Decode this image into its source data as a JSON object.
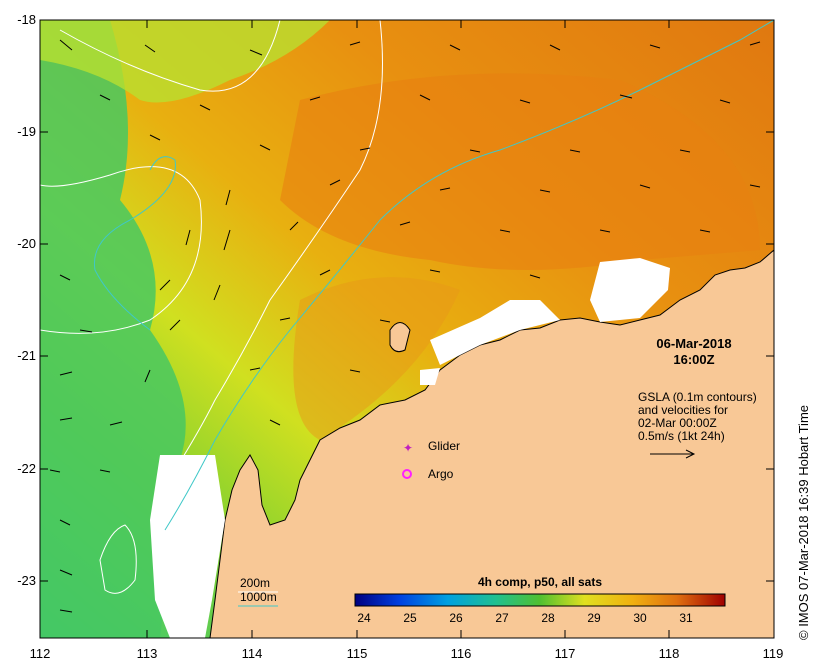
{
  "map": {
    "y_axis_labels": [
      "-18",
      "-19",
      "-20",
      "-21",
      "-22",
      "-23"
    ],
    "x_axis_labels": [
      "112",
      "113",
      "114",
      "115",
      "116",
      "117",
      "118",
      "119"
    ],
    "date": "06-Mar-2018",
    "time": "16:00Z",
    "gsla_lines": [
      "GSLA (0.1m contours)",
      "and velocities for",
      "02-Mar 00:00Z",
      "0.5m/s (1kt 24h)"
    ],
    "glider_label": "Glider",
    "argo_label": "Argo",
    "contour_200m": "200m",
    "contour_1000m": "1000m",
    "colorbar_title": "4h comp, p50, all sats",
    "colorbar_ticks": [
      "24",
      "25",
      "26",
      "27",
      "28",
      "29",
      "30",
      "31"
    ],
    "copyright": "© IMOS 07-Mar-2018 16:39 Hobart Time"
  },
  "colors": {
    "land": "#f8c896",
    "bathy_200": "#ffffff",
    "bathy_1000": "#40c8c8",
    "glider": "#c020c0",
    "argo": "#ff20ff"
  }
}
